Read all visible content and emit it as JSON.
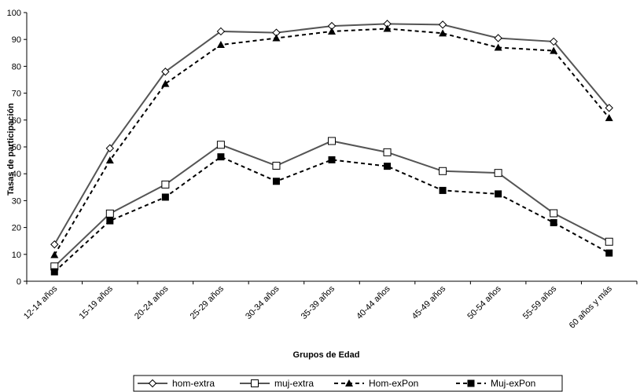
{
  "chart_data": {
    "type": "line",
    "xlabel": "Grupos de Edad",
    "ylabel": "Tasas de participación",
    "ylim": [
      0,
      100
    ],
    "yticks": [
      0,
      10,
      20,
      30,
      40,
      50,
      60,
      70,
      80,
      90,
      100
    ],
    "categories": [
      "12-14 años",
      "15-19 años",
      "20-24 años",
      "25-29 años",
      "30-34 años",
      "35-39 años",
      "40-44 años",
      "45-49 años",
      "50-54 años",
      "55-59 años",
      "60 años y más"
    ],
    "grid": false,
    "legend_position": "bottom",
    "series": [
      {
        "name": "hom-extra",
        "style": "solid",
        "marker": "diamond-open",
        "color": "#555555",
        "values": [
          13.7,
          49.5,
          78.0,
          93.0,
          92.5,
          95.0,
          95.8,
          95.5,
          90.5,
          89.2,
          64.5
        ]
      },
      {
        "name": "muj-extra",
        "style": "solid",
        "marker": "square-open",
        "color": "#555555",
        "values": [
          5.5,
          25.2,
          36.0,
          50.8,
          43.0,
          52.2,
          48.0,
          41.0,
          40.3,
          25.3,
          14.7
        ]
      },
      {
        "name": "Hom-exPon",
        "style": "dashed",
        "marker": "triangle-filled",
        "color": "#000000",
        "values": [
          9.8,
          45.0,
          73.5,
          88.0,
          90.5,
          93.0,
          94.0,
          92.3,
          87.0,
          85.8,
          60.8
        ]
      },
      {
        "name": "Muj-exPon",
        "style": "dashed",
        "marker": "square-filled",
        "color": "#000000",
        "values": [
          3.5,
          22.5,
          31.3,
          46.3,
          37.2,
          45.2,
          42.8,
          33.8,
          32.5,
          21.8,
          10.5
        ]
      }
    ]
  }
}
